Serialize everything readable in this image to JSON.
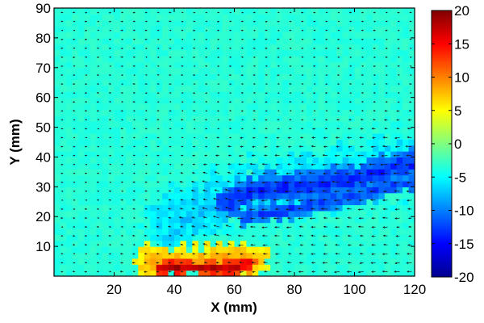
{
  "chart_data": {
    "type": "heatmap",
    "title": "",
    "xlabel": "X (mm)",
    "ylabel": "Y (mm)",
    "xlim": [
      0,
      120
    ],
    "ylim": [
      0,
      90
    ],
    "xticks": [
      20,
      40,
      60,
      80,
      100,
      120
    ],
    "yticks": [
      10,
      20,
      30,
      40,
      50,
      60,
      70,
      80,
      90
    ],
    "colorbar": {
      "clim": [
        -20,
        20
      ],
      "ticks": [
        20,
        15,
        10,
        5,
        0,
        -5,
        -10,
        -15,
        -20
      ],
      "colormap": "jet"
    },
    "background_value": -3.5,
    "regions": [
      {
        "kind": "negative band (~-14)",
        "polyline_xy": [
          [
            58,
            25
          ],
          [
            66,
            29
          ],
          [
            76,
            30
          ],
          [
            88,
            31
          ],
          [
            100,
            33
          ],
          [
            110,
            36
          ],
          [
            120,
            38
          ]
        ],
        "halfwidth_mm": 5,
        "value": -14
      },
      {
        "kind": "negative band lower (~-14)",
        "polyline_xy": [
          [
            64,
            20
          ],
          [
            76,
            22
          ],
          [
            90,
            25
          ],
          [
            104,
            28
          ],
          [
            120,
            32
          ]
        ],
        "halfwidth_mm": 3,
        "value": -13
      },
      {
        "kind": "cyan halo (~-7)",
        "polyline_xy": [
          [
            40,
            18
          ],
          [
            52,
            24
          ],
          [
            64,
            28
          ],
          [
            80,
            31
          ],
          [
            96,
            34
          ],
          [
            120,
            38
          ]
        ],
        "halfwidth_mm": 11,
        "value": -7
      },
      {
        "kind": "hot spot (~+18)",
        "polyline_xy": [
          [
            36,
            3
          ],
          [
            44,
            3
          ],
          [
            52,
            3
          ],
          [
            58,
            3
          ],
          [
            64,
            4
          ]
        ],
        "halfwidth_mm": 2.5,
        "value": 18
      },
      {
        "kind": "warm zone (~+8)",
        "polyline_xy": [
          [
            32,
            5
          ],
          [
            44,
            5
          ],
          [
            56,
            6
          ],
          [
            66,
            6
          ]
        ],
        "halfwidth_mm": 5,
        "value": 8
      }
    ],
    "vector_field": {
      "note": "quiver arrows, mostly pointing left, longer near the jet band and bottom",
      "grid_dx_mm": 4,
      "grid_dy_mm": 3
    },
    "colors": {
      "text": "#000000",
      "frame": "#000000",
      "arrow": "#1a1a1a"
    }
  }
}
